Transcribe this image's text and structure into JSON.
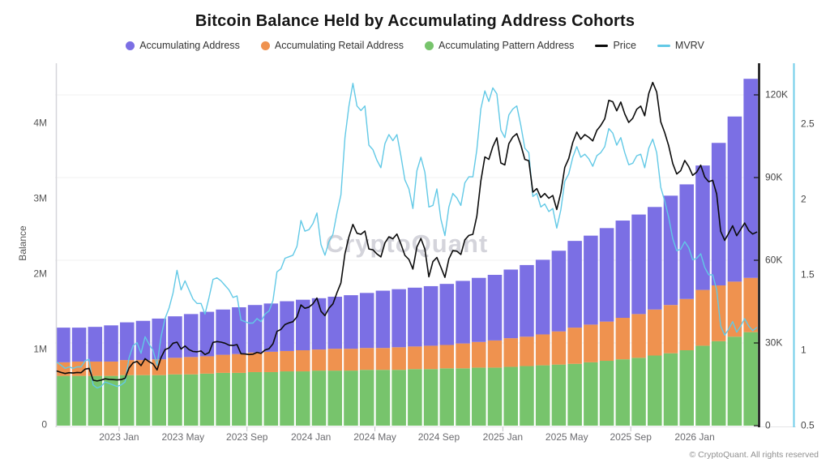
{
  "header": {
    "title": "Bitcoin Balance Held by Accumulating Address Cohorts"
  },
  "legend": {
    "items": [
      {
        "label": "Accumulating Address",
        "marker": "dot",
        "color": "#7B6FE4"
      },
      {
        "label": "Accumulating Retail Address",
        "marker": "dot",
        "color": "#EF924F"
      },
      {
        "label": "Accumulating Pattern Address",
        "marker": "dot",
        "color": "#77C46C"
      },
      {
        "label": "Price",
        "marker": "line",
        "color": "#0B0B0B"
      },
      {
        "label": "MVRV",
        "marker": "line",
        "color": "#62C9E6"
      }
    ]
  },
  "watermark": "CryptoQuant",
  "footer": {
    "copyright": "© CryptoQuant. All rights reserved"
  },
  "chart_data": {
    "type": "combo",
    "title": "Bitcoin Balance Held by Accumulating Address Cohorts",
    "grid": "horizontal-light",
    "legend_position": "top",
    "months": [
      "2022-09",
      "2022-10",
      "2022-11",
      "2022-12",
      "2023-01",
      "2023-02",
      "2023-03",
      "2023-04",
      "2023-05",
      "2023-06",
      "2023-07",
      "2023-08",
      "2023-09",
      "2023-10",
      "2023-11",
      "2023-12",
      "2024-01",
      "2024-02",
      "2024-03",
      "2024-04",
      "2024-05",
      "2024-06",
      "2024-07",
      "2024-08",
      "2024-09",
      "2024-10",
      "2024-11",
      "2024-12",
      "2025-01",
      "2025-02",
      "2025-03",
      "2025-04",
      "2025-05",
      "2025-06",
      "2025-07",
      "2025-08",
      "2025-09",
      "2025-10",
      "2025-11",
      "2025-12",
      "2026-01",
      "2026-02",
      "2026-03",
      "2026-04"
    ],
    "x_tick_labels": [
      "2023 Jan",
      "2023 May",
      "2023 Sep",
      "2024 Jan",
      "2024 May",
      "2024 Sep",
      "2025 Jan",
      "2025 May",
      "2025 Sep",
      "2026 Jan"
    ],
    "x_tick_month_indices": [
      4,
      8,
      12,
      16,
      20,
      24,
      28,
      32,
      36,
      40
    ],
    "x_minor_tick_month_indices": [
      4,
      12,
      20,
      28,
      36
    ],
    "axes": {
      "balance": {
        "title": "Balance",
        "ticks": [
          "0",
          "1M",
          "2M",
          "3M",
          "4M"
        ],
        "tick_values": [
          0,
          1,
          2,
          3,
          4
        ],
        "unit": "M BTC",
        "range": [
          0,
          4.8
        ]
      },
      "price": {
        "ticks": [
          "0",
          "30K",
          "60K",
          "90K",
          "120K"
        ],
        "tick_values": [
          0,
          30,
          60,
          90,
          120
        ],
        "unit": "K USD",
        "range": [
          0,
          131.5
        ]
      },
      "mvrv": {
        "ticks": [
          "0.5",
          "1",
          "1.5",
          "2",
          "2.5"
        ],
        "tick_values": [
          0.5,
          1,
          1.5,
          2,
          2.5
        ],
        "range": [
          0.5,
          2.9
        ]
      }
    },
    "bar_series": [
      {
        "name": "Accumulating Pattern Address",
        "color": "#77C46C",
        "axis": "balance",
        "stack_order": 0,
        "values": [
          0.66,
          0.66,
          0.66,
          0.66,
          0.67,
          0.67,
          0.67,
          0.68,
          0.68,
          0.69,
          0.7,
          0.7,
          0.71,
          0.71,
          0.72,
          0.72,
          0.73,
          0.73,
          0.73,
          0.74,
          0.74,
          0.74,
          0.75,
          0.75,
          0.76,
          0.76,
          0.77,
          0.77,
          0.78,
          0.79,
          0.8,
          0.81,
          0.82,
          0.84,
          0.86,
          0.88,
          0.9,
          0.93,
          0.96,
          1.0,
          1.06,
          1.12,
          1.18,
          1.24
        ]
      },
      {
        "name": "Accumulating Retail Address",
        "color": "#EF924F",
        "axis": "balance",
        "stack_order": 1,
        "values": [
          0.18,
          0.19,
          0.19,
          0.19,
          0.2,
          0.2,
          0.21,
          0.22,
          0.23,
          0.23,
          0.24,
          0.25,
          0.26,
          0.27,
          0.27,
          0.28,
          0.28,
          0.29,
          0.29,
          0.29,
          0.29,
          0.3,
          0.3,
          0.31,
          0.31,
          0.33,
          0.34,
          0.36,
          0.38,
          0.39,
          0.41,
          0.44,
          0.48,
          0.5,
          0.52,
          0.55,
          0.58,
          0.61,
          0.64,
          0.68,
          0.74,
          0.74,
          0.73,
          0.72
        ]
      },
      {
        "name": "Accumulating Address",
        "color": "#7B6FE4",
        "axis": "balance",
        "stack_order": 2,
        "values": [
          0.46,
          0.45,
          0.46,
          0.48,
          0.5,
          0.52,
          0.54,
          0.55,
          0.57,
          0.59,
          0.6,
          0.62,
          0.63,
          0.64,
          0.66,
          0.67,
          0.68,
          0.69,
          0.71,
          0.73,
          0.76,
          0.77,
          0.78,
          0.79,
          0.81,
          0.83,
          0.85,
          0.87,
          0.91,
          0.95,
          0.99,
          1.07,
          1.15,
          1.18,
          1.24,
          1.29,
          1.32,
          1.36,
          1.45,
          1.52,
          1.65,
          1.89,
          2.19,
          2.64
        ]
      }
    ],
    "line_series": [
      {
        "name": "Price",
        "color": "#0B0B0B",
        "axis": "price",
        "unit": "K USD",
        "points_per_month": 4,
        "values": [
          19.8,
          19.3,
          18.9,
          19.2,
          19.1,
          19.3,
          19.2,
          20.5,
          20.8,
          16.5,
          16.2,
          16.5,
          17.0,
          16.8,
          16.7,
          16.6,
          16.7,
          17.2,
          20.9,
          22.8,
          23.3,
          21.8,
          24.3,
          23.2,
          22.4,
          20.2,
          24.7,
          27.6,
          28.2,
          29.9,
          30.3,
          27.8,
          28.9,
          27.6,
          26.9,
          26.8,
          27.1,
          25.8,
          26.5,
          30.2,
          30.5,
          30.3,
          29.9,
          29.2,
          29.1,
          29.4,
          26.1,
          26.0,
          25.8,
          25.9,
          26.6,
          26.2,
          27.4,
          27.9,
          29.7,
          34.2,
          34.9,
          36.7,
          37.3,
          37.7,
          39.5,
          43.8,
          42.6,
          43.0,
          44.2,
          46.3,
          41.5,
          39.9,
          42.6,
          44.2,
          48.2,
          51.8,
          62.4,
          68.5,
          73.0,
          69.8,
          69.4,
          70.6,
          64.1,
          63.8,
          62.3,
          61.2,
          66.3,
          68.5,
          67.8,
          69.5,
          65.9,
          61.8,
          60.3,
          56.8,
          64.8,
          67.9,
          64.0,
          54.0,
          59.5,
          61.0,
          57.5,
          53.8,
          60.5,
          63.5,
          63.3,
          62.1,
          67.4,
          69.0,
          69.4,
          76.0,
          88.7,
          97.5,
          96.6,
          101.2,
          104.4,
          95.3,
          94.6,
          102.3,
          104.7,
          105.9,
          101.8,
          96.6,
          96.1,
          84.7,
          86.0,
          82.8,
          84.2,
          82.5,
          83.5,
          78.4,
          84.5,
          93.7,
          96.9,
          102.8,
          106.5,
          103.9,
          105.6,
          104.6,
          103.3,
          107.1,
          108.9,
          111.3,
          118.0,
          117.5,
          114.2,
          117.4,
          113.1,
          110.0,
          111.5,
          114.8,
          115.9,
          112.4,
          120.5,
          124.5,
          121.0,
          110.2,
          106.3,
          101.5,
          95.1,
          91.3,
          92.5,
          96.2,
          94.0,
          90.8,
          92.0,
          94.5,
          90.2,
          88.5,
          89.0,
          84.0,
          70.5,
          67.2,
          69.8,
          72.5,
          68.9,
          71.2,
          73.5,
          70.8,
          69.5,
          70.2
        ]
      },
      {
        "name": "MVRV",
        "color": "#62C9E6",
        "axis": "mvrv",
        "points_per_month": 4,
        "values": [
          0.92,
          0.9,
          0.88,
          0.89,
          0.88,
          0.89,
          0.89,
          0.93,
          0.94,
          0.77,
          0.75,
          0.76,
          0.79,
          0.78,
          0.77,
          0.76,
          0.77,
          0.79,
          0.95,
          1.03,
          1.05,
          0.98,
          1.09,
          1.04,
          1.0,
          0.9,
          1.09,
          1.21,
          1.28,
          1.38,
          1.53,
          1.4,
          1.46,
          1.4,
          1.34,
          1.31,
          1.31,
          1.24,
          1.35,
          1.47,
          1.48,
          1.46,
          1.43,
          1.4,
          1.35,
          1.36,
          1.2,
          1.19,
          1.18,
          1.18,
          1.21,
          1.19,
          1.24,
          1.26,
          1.33,
          1.52,
          1.54,
          1.61,
          1.62,
          1.63,
          1.69,
          1.86,
          1.79,
          1.8,
          1.84,
          1.91,
          1.7,
          1.63,
          1.72,
          1.77,
          1.91,
          2.03,
          2.41,
          2.62,
          2.77,
          2.62,
          2.59,
          2.62,
          2.36,
          2.33,
          2.26,
          2.21,
          2.37,
          2.43,
          2.39,
          2.43,
          2.29,
          2.13,
          2.07,
          1.94,
          2.19,
          2.28,
          2.18,
          1.95,
          1.96,
          2.07,
          1.87,
          1.76,
          1.95,
          2.04,
          2.01,
          1.96,
          2.11,
          2.15,
          2.15,
          2.33,
          2.6,
          2.72,
          2.65,
          2.74,
          2.7,
          2.46,
          2.41,
          2.56,
          2.6,
          2.62,
          2.49,
          2.34,
          2.31,
          2.02,
          2.04,
          1.95,
          1.97,
          1.92,
          1.94,
          1.81,
          1.93,
          2.12,
          2.17,
          2.28,
          2.35,
          2.28,
          2.3,
          2.27,
          2.22,
          2.29,
          2.31,
          2.35,
          2.47,
          2.44,
          2.36,
          2.41,
          2.31,
          2.23,
          2.24,
          2.29,
          2.3,
          2.21,
          2.34,
          2.4,
          2.31,
          2.08,
          1.99,
          1.88,
          1.74,
          1.66,
          1.67,
          1.72,
          1.68,
          1.6,
          1.61,
          1.64,
          1.55,
          1.5,
          1.5,
          1.4,
          1.16,
          1.1,
          1.14,
          1.19,
          1.12,
          1.16,
          1.21,
          1.16,
          1.13,
          1.15
        ]
      }
    ]
  }
}
